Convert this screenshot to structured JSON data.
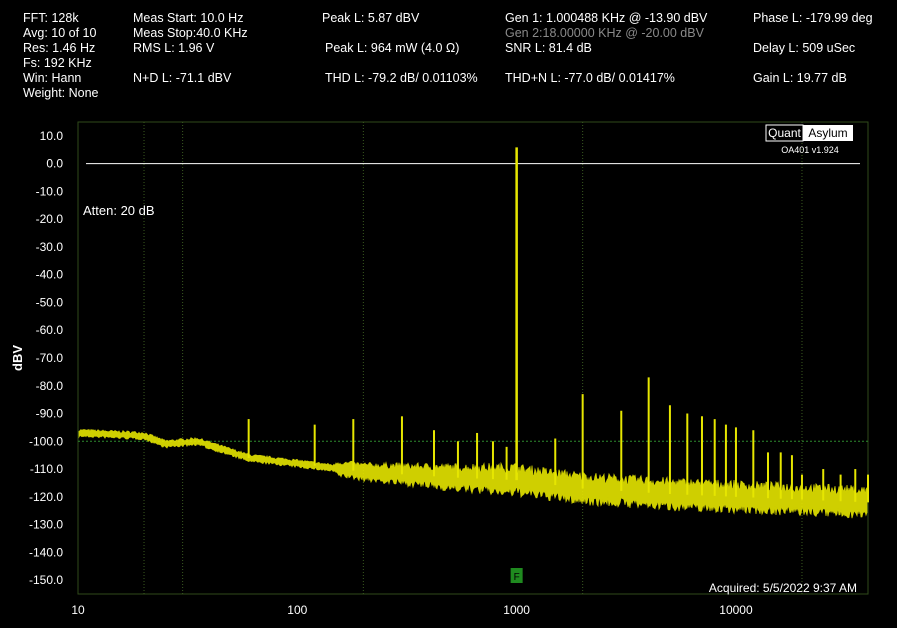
{
  "header": {
    "col1": [
      "FFT: 128k",
      "Avg: 10 of 10",
      "Res: 1.46 Hz",
      "Fs: 192 KHz",
      "Win: Hann",
      "Weight: None"
    ],
    "meas_start": "Meas Start: 10.0 Hz",
    "meas_stop": "Meas Stop:40.0 KHz",
    "rms": "RMS L: 1.96 V",
    "nd": "N+D L: -71.1 dBV",
    "peak_l": "Peak L: 5.87 dBV",
    "peak_w": "Peak L: 964 mW (4.0 Ω)",
    "thd": "THD L: -79.2 dB/ 0.01103%",
    "gen1": "Gen 1: 1.000488 KHz @ -13.90  dBV",
    "gen2": "Gen 2:18.00000 KHz @ -20.00  dBV",
    "snr": "SNR L: 81.4 dB",
    "thdn": "THD+N L: -77.0 dB/ 0.01417%",
    "phase": "Phase L: -179.99 deg",
    "delay": "Delay L: 509 uSec",
    "gain": "Gain L: 19.77 dB"
  },
  "plot": {
    "atten": "Atten: 20 dB",
    "logo_left": "Quant",
    "logo_right": "Asylum",
    "version": "OA401 v1.924",
    "acquired": "Acquired: 5/5/2022  9:37 AM",
    "marker": "F",
    "ylabel": "dBV",
    "colors": {
      "trace": "#e6e600",
      "grid": "#3a5a20",
      "ref_line": "#ffffff",
      "limit_line": "#2e8b2e",
      "marker": "#1f8a1f"
    }
  },
  "chart_data": {
    "type": "line",
    "x_scale": "log",
    "xlim": [
      10,
      40000
    ],
    "ylim": [
      -155,
      15
    ],
    "xticks": [
      "10",
      "100",
      "1000",
      "10000"
    ],
    "yticks": [
      "10.0",
      "0.0",
      "-10.0",
      "-20.0",
      "-30.0",
      "-40.0",
      "-50.0",
      "-60.0",
      "-70.0",
      "-80.0",
      "-90.0",
      "-100.0",
      "-110.0",
      "-120.0",
      "-130.0",
      "-140.0",
      "-150.0"
    ],
    "ylabel": "dBV",
    "reference_line": 0,
    "limit_line": -100,
    "noise_floor": [
      [
        10,
        -97
      ],
      [
        20,
        -98
      ],
      [
        25,
        -101
      ],
      [
        35,
        -100
      ],
      [
        60,
        -106
      ],
      [
        100,
        -108
      ],
      [
        200,
        -111
      ],
      [
        500,
        -113
      ],
      [
        1000,
        -114
      ],
      [
        2000,
        -117
      ],
      [
        5000,
        -119
      ],
      [
        10000,
        -120
      ],
      [
        20000,
        -121
      ],
      [
        40000,
        -122
      ]
    ],
    "fundamental": {
      "freq": 1000,
      "level": 5.87
    },
    "spurs": [
      [
        60,
        -92
      ],
      [
        120,
        -94
      ],
      [
        180,
        -92
      ],
      [
        300,
        -91
      ],
      [
        420,
        -96
      ],
      [
        540,
        -100
      ],
      [
        660,
        -97
      ],
      [
        780,
        -100
      ],
      [
        900,
        -102
      ],
      [
        1500,
        -99
      ],
      [
        2000,
        -83
      ],
      [
        3000,
        -89
      ],
      [
        4000,
        -77
      ],
      [
        5000,
        -87
      ],
      [
        6000,
        -90
      ],
      [
        7000,
        -91
      ],
      [
        8000,
        -92
      ],
      [
        9000,
        -94
      ],
      [
        10000,
        -95
      ],
      [
        12000,
        -96
      ],
      [
        14000,
        -104
      ],
      [
        16000,
        -104
      ],
      [
        18000,
        -105
      ],
      [
        20000,
        -112
      ],
      [
        25000,
        -110
      ],
      [
        30000,
        -112
      ],
      [
        35000,
        -110
      ],
      [
        40000,
        -112
      ]
    ]
  }
}
